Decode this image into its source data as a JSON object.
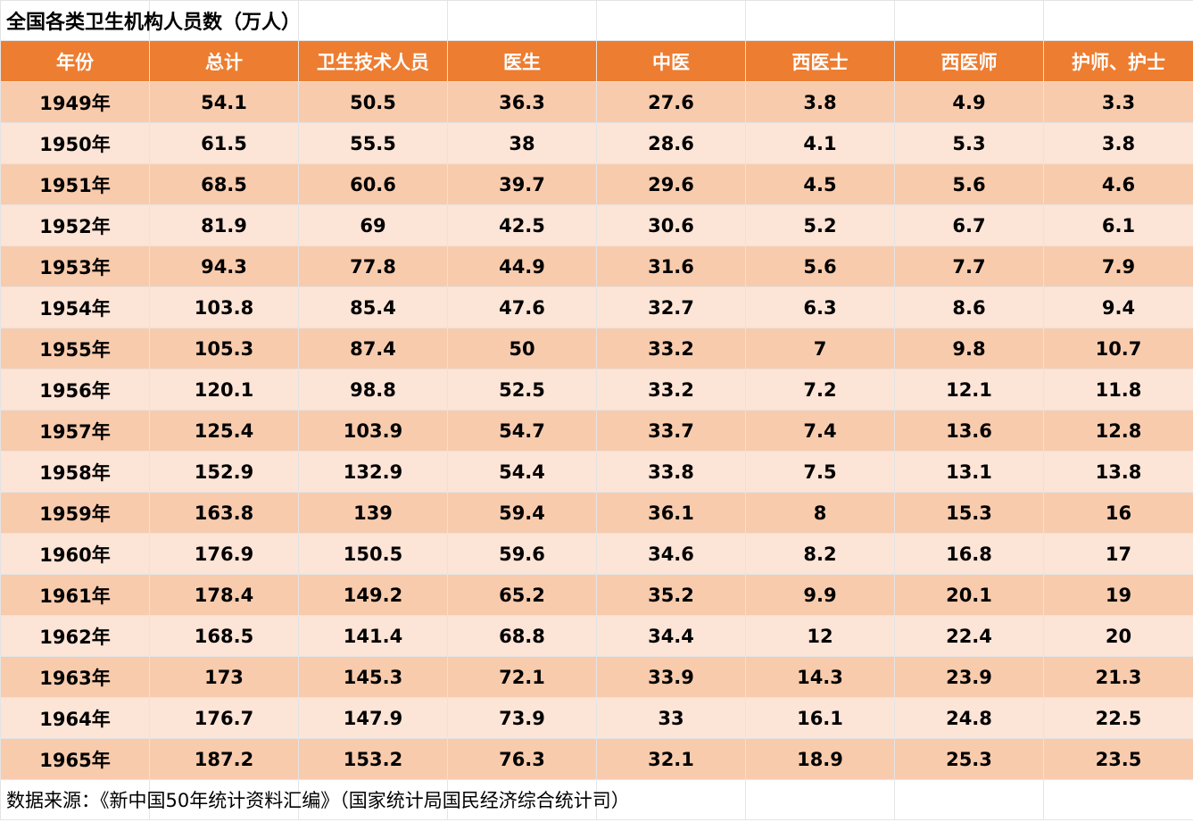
{
  "title": "全国各类卫生机构人员数（万人）",
  "columns": [
    "年份",
    "总计",
    "卫生技术人员",
    "医生",
    "中医",
    "西医士",
    "西医师",
    "护师、护士"
  ],
  "rows": [
    [
      "1949年",
      "54.1",
      "50.5",
      "36.3",
      "27.6",
      "3.8",
      "4.9",
      "3.3"
    ],
    [
      "1950年",
      "61.5",
      "55.5",
      "38",
      "28.6",
      "4.1",
      "5.3",
      "3.8"
    ],
    [
      "1951年",
      "68.5",
      "60.6",
      "39.7",
      "29.6",
      "4.5",
      "5.6",
      "4.6"
    ],
    [
      "1952年",
      "81.9",
      "69",
      "42.5",
      "30.6",
      "5.2",
      "6.7",
      "6.1"
    ],
    [
      "1953年",
      "94.3",
      "77.8",
      "44.9",
      "31.6",
      "5.6",
      "7.7",
      "7.9"
    ],
    [
      "1954年",
      "103.8",
      "85.4",
      "47.6",
      "32.7",
      "6.3",
      "8.6",
      "9.4"
    ],
    [
      "1955年",
      "105.3",
      "87.4",
      "50",
      "33.2",
      "7",
      "9.8",
      "10.7"
    ],
    [
      "1956年",
      "120.1",
      "98.8",
      "52.5",
      "33.2",
      "7.2",
      "12.1",
      "11.8"
    ],
    [
      "1957年",
      "125.4",
      "103.9",
      "54.7",
      "33.7",
      "7.4",
      "13.6",
      "12.8"
    ],
    [
      "1958年",
      "152.9",
      "132.9",
      "54.4",
      "33.8",
      "7.5",
      "13.1",
      "13.8"
    ],
    [
      "1959年",
      "163.8",
      "139",
      "59.4",
      "36.1",
      "8",
      "15.3",
      "16"
    ],
    [
      "1960年",
      "176.9",
      "150.5",
      "59.6",
      "34.6",
      "8.2",
      "16.8",
      "17"
    ],
    [
      "1961年",
      "178.4",
      "149.2",
      "65.2",
      "35.2",
      "9.9",
      "20.1",
      "19"
    ],
    [
      "1962年",
      "168.5",
      "141.4",
      "68.8",
      "34.4",
      "12",
      "22.4",
      "20"
    ],
    [
      "1963年",
      "173",
      "145.3",
      "72.1",
      "33.9",
      "14.3",
      "23.9",
      "21.3"
    ],
    [
      "1964年",
      "176.7",
      "147.9",
      "73.9",
      "33",
      "16.1",
      "24.8",
      "22.5"
    ],
    [
      "1965年",
      "187.2",
      "153.2",
      "76.3",
      "32.1",
      "18.9",
      "25.3",
      "23.5"
    ]
  ],
  "source": "数据来源：《新中国50年统计资料汇编》（国家统计局国民经济综合统计司）",
  "colors": {
    "header_bg": "#ed7d31",
    "header_text": "#ffffff",
    "row_odd_bg": "#f8cbad",
    "row_even_bg": "#fce4d6"
  }
}
